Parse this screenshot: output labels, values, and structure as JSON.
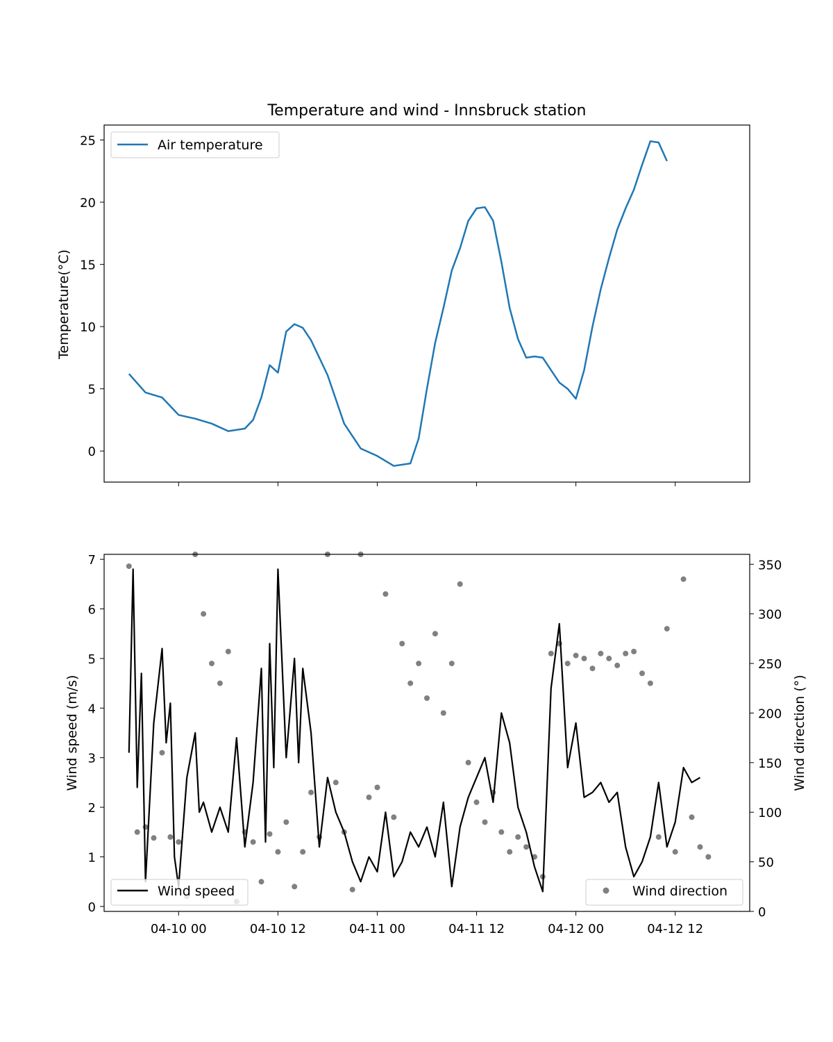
{
  "chart_data": [
    {
      "type": "line",
      "title": "Temperature and wind - Innsbruck station",
      "xlabel": "",
      "ylabel": "Temperature(°C)",
      "xlim": [
        "2024-04-09 15:00",
        "2024-04-12 21:00"
      ],
      "ylim": [
        -2.5,
        26.2
      ],
      "yticks": [
        0,
        5,
        10,
        15,
        20,
        25
      ],
      "grid": false,
      "legend": "upper left",
      "series": [
        {
          "name": "Air temperature",
          "color": "#1f77b4",
          "x": [
            "2024-04-09 18:00",
            "2024-04-09 20:00",
            "2024-04-09 22:00",
            "2024-04-10 00:00",
            "2024-04-10 02:00",
            "2024-04-10 04:00",
            "2024-04-10 06:00",
            "2024-04-10 08:00",
            "2024-04-10 09:00",
            "2024-04-10 10:00",
            "2024-04-10 11:00",
            "2024-04-10 12:00",
            "2024-04-10 13:00",
            "2024-04-10 14:00",
            "2024-04-10 15:00",
            "2024-04-10 16:00",
            "2024-04-10 18:00",
            "2024-04-10 20:00",
            "2024-04-10 22:00",
            "2024-04-11 00:00",
            "2024-04-11 02:00",
            "2024-04-11 04:00",
            "2024-04-11 05:00",
            "2024-04-11 06:00",
            "2024-04-11 07:00",
            "2024-04-11 08:00",
            "2024-04-11 09:00",
            "2024-04-11 10:00",
            "2024-04-11 11:00",
            "2024-04-11 12:00",
            "2024-04-11 13:00",
            "2024-04-11 14:00",
            "2024-04-11 15:00",
            "2024-04-11 16:00",
            "2024-04-11 17:00",
            "2024-04-11 18:00",
            "2024-04-11 19:00",
            "2024-04-11 20:00",
            "2024-04-11 21:00",
            "2024-04-11 22:00",
            "2024-04-11 23:00",
            "2024-04-12 00:00",
            "2024-04-12 01:00",
            "2024-04-12 02:00",
            "2024-04-12 03:00",
            "2024-04-12 04:00",
            "2024-04-12 05:00",
            "2024-04-12 06:00",
            "2024-04-12 07:00",
            "2024-04-12 08:00",
            "2024-04-12 09:00",
            "2024-04-12 10:00",
            "2024-04-12 11:00",
            "2024-04-12 12:00",
            "2024-04-12 13:00",
            "2024-04-12 14:00",
            "2024-04-12 15:00",
            "2024-04-12 16:00"
          ],
          "values": [
            6.2,
            4.7,
            4.3,
            2.9,
            2.6,
            2.2,
            1.6,
            1.8,
            2.5,
            4.3,
            6.9,
            6.3,
            9.6,
            10.2,
            9.9,
            8.9,
            6.1,
            2.2,
            0.2,
            -0.4,
            -1.2,
            -1.0,
            1.0,
            5.0,
            8.7,
            11.5,
            14.5,
            16.3,
            18.5,
            19.5,
            19.6,
            18.5,
            15.2,
            11.5,
            9.0,
            7.5,
            7.6,
            7.5,
            6.5,
            5.5,
            5.0,
            4.2,
            6.5,
            10.0,
            13.0,
            15.5,
            17.8,
            19.5,
            21.0,
            23.0,
            24.9,
            24.8,
            23.3,
            null,
            null,
            null,
            null,
            null
          ]
        }
      ]
    },
    {
      "type": "line",
      "title": "",
      "xlabel": "",
      "ylabel": "Wind speed (m/s)",
      "ylabel_right": "Wind direction (°)",
      "xlim": [
        "2024-04-09 15:00",
        "2024-04-12 21:00"
      ],
      "ylim": [
        -0.1,
        7.1
      ],
      "ylim_right": [
        0,
        360
      ],
      "yticks": [
        0,
        1,
        2,
        3,
        4,
        5,
        6,
        7
      ],
      "yticks_right": [
        0,
        50,
        100,
        150,
        200,
        250,
        300,
        350
      ],
      "xticklabels": [
        "04-10 00",
        "04-10 12",
        "04-11 00",
        "04-11 12",
        "04-12 00",
        "04-12 12"
      ],
      "xticks": [
        "2024-04-10 00:00",
        "2024-04-10 12:00",
        "2024-04-11 00:00",
        "2024-04-11 12:00",
        "2024-04-12 00:00",
        "2024-04-12 12:00"
      ],
      "grid": false,
      "legend": [
        "lower left",
        "lower right"
      ],
      "series": [
        {
          "name": "Wind speed",
          "color": "#000000",
          "axis": "left",
          "x": [
            "2024-04-09 18:00",
            "2024-04-09 18:30",
            "2024-04-09 19:00",
            "2024-04-09 19:30",
            "2024-04-09 20:00",
            "2024-04-09 21:00",
            "2024-04-09 22:00",
            "2024-04-09 22:30",
            "2024-04-09 23:00",
            "2024-04-09 23:30",
            "2024-04-10 00:00",
            "2024-04-10 01:00",
            "2024-04-10 02:00",
            "2024-04-10 02:30",
            "2024-04-10 03:00",
            "2024-04-10 04:00",
            "2024-04-10 05:00",
            "2024-04-10 06:00",
            "2024-04-10 07:00",
            "2024-04-10 08:00",
            "2024-04-10 09:00",
            "2024-04-10 10:00",
            "2024-04-10 10:30",
            "2024-04-10 11:00",
            "2024-04-10 11:30",
            "2024-04-10 12:00",
            "2024-04-10 13:00",
            "2024-04-10 14:00",
            "2024-04-10 14:30",
            "2024-04-10 15:00",
            "2024-04-10 16:00",
            "2024-04-10 17:00",
            "2024-04-10 18:00",
            "2024-04-10 19:00",
            "2024-04-10 20:00",
            "2024-04-10 21:00",
            "2024-04-10 22:00",
            "2024-04-10 23:00",
            "2024-04-11 00:00",
            "2024-04-11 01:00",
            "2024-04-11 02:00",
            "2024-04-11 03:00",
            "2024-04-11 04:00",
            "2024-04-11 05:00",
            "2024-04-11 06:00",
            "2024-04-11 07:00",
            "2024-04-11 08:00",
            "2024-04-11 09:00",
            "2024-04-11 10:00",
            "2024-04-11 11:00",
            "2024-04-11 12:00",
            "2024-04-11 13:00",
            "2024-04-11 14:00",
            "2024-04-11 15:00",
            "2024-04-11 16:00",
            "2024-04-11 17:00",
            "2024-04-11 18:00",
            "2024-04-11 19:00",
            "2024-04-11 20:00",
            "2024-04-11 21:00",
            "2024-04-11 22:00",
            "2024-04-11 23:00",
            "2024-04-12 00:00",
            "2024-04-12 01:00",
            "2024-04-12 02:00",
            "2024-04-12 03:00",
            "2024-04-12 04:00",
            "2024-04-12 05:00",
            "2024-04-12 06:00",
            "2024-04-12 07:00",
            "2024-04-12 08:00",
            "2024-04-12 09:00",
            "2024-04-12 10:00",
            "2024-04-12 11:00",
            "2024-04-12 12:00",
            "2024-04-12 13:00",
            "2024-04-12 14:00",
            "2024-04-12 15:00",
            "2024-04-12 16:00"
          ],
          "values": [
            3.1,
            6.8,
            2.4,
            4.7,
            0.5,
            3.7,
            5.2,
            3.3,
            4.1,
            1.0,
            0.4,
            2.6,
            3.5,
            1.9,
            2.1,
            1.5,
            2.0,
            1.5,
            3.4,
            1.2,
            2.5,
            4.8,
            1.3,
            5.3,
            2.8,
            6.8,
            3.0,
            5.0,
            2.9,
            4.8,
            3.5,
            1.2,
            2.6,
            1.9,
            1.5,
            0.9,
            0.5,
            1.0,
            0.7,
            1.9,
            0.6,
            0.9,
            1.5,
            1.2,
            1.6,
            1.0,
            2.1,
            0.4,
            1.6,
            2.2,
            2.6,
            3.0,
            2.1,
            3.9,
            3.3,
            2.0,
            1.5,
            0.8,
            0.3,
            4.4,
            5.7,
            2.8,
            3.7,
            2.2,
            2.3,
            2.5,
            2.1,
            2.3,
            1.2,
            0.6,
            0.9,
            1.4,
            2.5,
            1.2,
            1.7,
            2.8,
            2.5,
            2.6,
            null
          ]
        },
        {
          "name": "Wind direction",
          "color": "#808080",
          "axis": "right",
          "type": "scatter",
          "x": [
            "2024-04-09 18:00",
            "2024-04-09 19:00",
            "2024-04-09 20:00",
            "2024-04-09 21:00",
            "2024-04-09 22:00",
            "2024-04-09 23:00",
            "2024-04-10 00:00",
            "2024-04-10 01:00",
            "2024-04-10 02:00",
            "2024-04-10 03:00",
            "2024-04-10 04:00",
            "2024-04-10 05:00",
            "2024-04-10 06:00",
            "2024-04-10 07:00",
            "2024-04-10 08:00",
            "2024-04-10 09:00",
            "2024-04-10 10:00",
            "2024-04-10 11:00",
            "2024-04-10 12:00",
            "2024-04-10 13:00",
            "2024-04-10 14:00",
            "2024-04-10 15:00",
            "2024-04-10 16:00",
            "2024-04-10 17:00",
            "2024-04-10 18:00",
            "2024-04-10 19:00",
            "2024-04-10 20:00",
            "2024-04-10 21:00",
            "2024-04-10 22:00",
            "2024-04-10 23:00",
            "2024-04-11 00:00",
            "2024-04-11 01:00",
            "2024-04-11 02:00",
            "2024-04-11 03:00",
            "2024-04-11 04:00",
            "2024-04-11 05:00",
            "2024-04-11 06:00",
            "2024-04-11 07:00",
            "2024-04-11 08:00",
            "2024-04-11 09:00",
            "2024-04-11 10:00",
            "2024-04-11 11:00",
            "2024-04-11 12:00",
            "2024-04-11 13:00",
            "2024-04-11 14:00",
            "2024-04-11 15:00",
            "2024-04-11 16:00",
            "2024-04-11 17:00",
            "2024-04-11 18:00",
            "2024-04-11 19:00",
            "2024-04-11 20:00",
            "2024-04-11 21:00",
            "2024-04-11 22:00",
            "2024-04-11 23:00",
            "2024-04-12 00:00",
            "2024-04-12 01:00",
            "2024-04-12 02:00",
            "2024-04-12 03:00",
            "2024-04-12 04:00",
            "2024-04-12 05:00",
            "2024-04-12 06:00",
            "2024-04-12 07:00",
            "2024-04-12 08:00",
            "2024-04-12 09:00",
            "2024-04-12 10:00",
            "2024-04-12 11:00",
            "2024-04-12 12:00",
            "2024-04-12 13:00",
            "2024-04-12 14:00",
            "2024-04-12 15:00",
            "2024-04-12 16:00"
          ],
          "values": [
            348,
            80,
            85,
            74,
            160,
            75,
            70,
            15,
            360,
            300,
            250,
            230,
            262,
            10,
            80,
            70,
            30,
            78,
            60,
            90,
            25,
            60,
            120,
            75,
            360,
            130,
            80,
            22,
            360,
            115,
            125,
            320,
            95,
            270,
            230,
            250,
            215,
            280,
            200,
            250,
            330,
            150,
            110,
            90,
            120,
            80,
            60,
            75,
            65,
            55,
            35,
            260,
            270,
            250,
            258,
            255,
            245,
            260,
            255,
            248,
            260,
            262,
            240,
            230,
            75,
            285,
            60,
            335,
            95,
            65,
            55
          ]
        }
      ]
    }
  ]
}
